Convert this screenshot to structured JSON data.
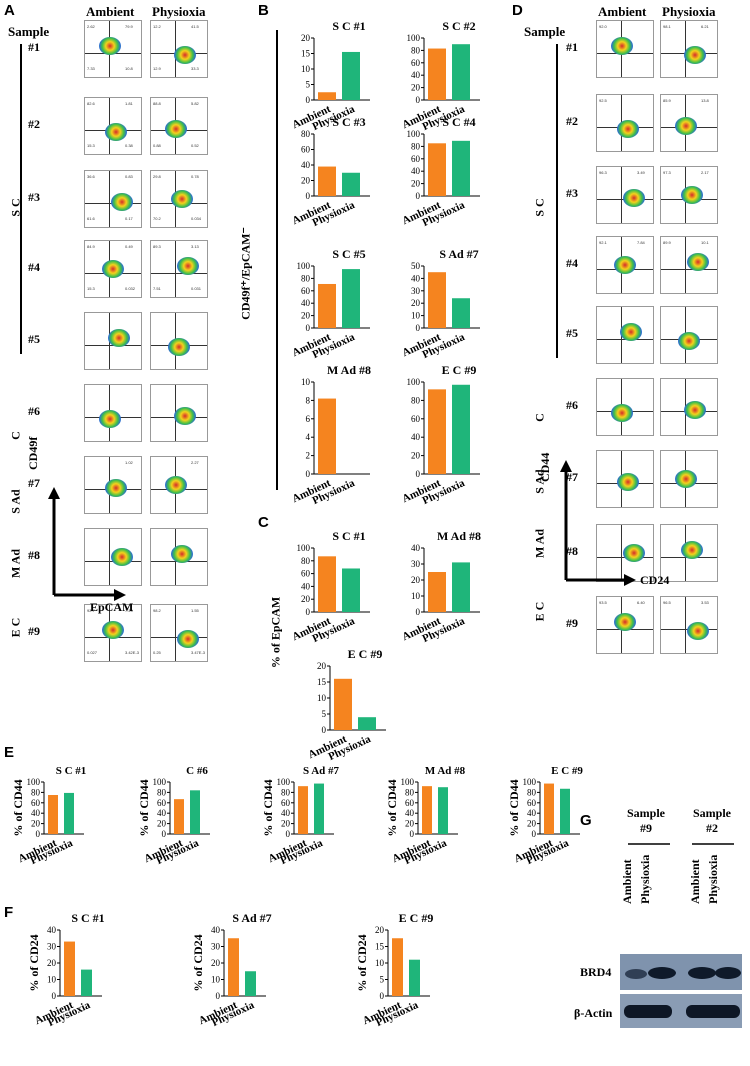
{
  "panelA": {
    "label": "A",
    "col_ambient": "Ambient",
    "col_physioxia": "Physioxia",
    "sample_header": "Sample",
    "samples": [
      "#1",
      "#2",
      "#3",
      "#4",
      "#5",
      "#6",
      "#7",
      "#8",
      "#9"
    ],
    "groups": {
      "sc": "S C",
      "c": "C",
      "sad": "S Ad",
      "mad": "M Ad",
      "ec": "E C"
    },
    "y_axis": "CD49f",
    "x_axis": "EpCAM",
    "quadrant_values": [
      {
        "amb": [
          "2.62",
          "79.9",
          "7.33",
          "10.8"
        ],
        "phy": [
          "12.2",
          "41.5",
          "12.9",
          "33.3"
        ]
      },
      {
        "amb": [
          "82.6",
          "1.81",
          "15.3",
          "0.38"
        ],
        "phy": [
          "88.8",
          "5.82",
          "0.88",
          "0.52"
        ]
      },
      {
        "amb": [
          "36.6",
          "0.83",
          "61.6",
          "0.17"
        ],
        "phy": [
          "29.8",
          "0.78",
          "70.2",
          "0.034"
        ]
      },
      {
        "amb": [
          "84.9",
          "0.49",
          "15.3",
          "0.032"
        ],
        "phy": [
          "89.3",
          "3.13",
          "7.51",
          "0.031"
        ]
      },
      {
        "amb": [
          "",
          "",
          "",
          ""
        ],
        "phy": [
          "",
          "",
          "",
          ""
        ]
      },
      {
        "amb": [
          "",
          "",
          "",
          ""
        ],
        "phy": [
          "",
          "",
          "",
          ""
        ]
      },
      {
        "amb": [
          "",
          "1.02",
          "",
          ""
        ],
        "phy": [
          "",
          "2.27",
          "",
          ""
        ]
      },
      {
        "amb": [
          "",
          "",
          "",
          ""
        ],
        "phy": [
          "",
          "",
          "",
          ""
        ]
      },
      {
        "amb": [
          "92.7",
          "7.29",
          "0.027",
          "3.42E-3"
        ],
        "phy": [
          "98.2",
          "1.55",
          "0.25",
          "3.47E-3"
        ]
      }
    ]
  },
  "panelB": {
    "label": "B",
    "y_axis": "CD49f⁺/EpCAM⁻"
  },
  "panelC": {
    "label": "C",
    "y_axis": "% of EpCAM"
  },
  "panelD": {
    "label": "D",
    "col_ambient": "Ambient",
    "col_physioxia": "Physioxia",
    "sample_header": "Sample",
    "samples": [
      "#1",
      "#2",
      "#3",
      "#4",
      "#5",
      "#6",
      "#7",
      "#8",
      "#9"
    ],
    "groups": {
      "sc": "S C",
      "c": "C",
      "sad": "S Ad",
      "mad": "M Ad",
      "ec": "E C"
    },
    "y_axis": "CD44",
    "x_axis": "CD24",
    "quadrant_values": [
      {
        "amb": [
          "92.0",
          "",
          "",
          ""
        ],
        "phy": [
          "98.1",
          "6.21",
          "",
          ""
        ]
      },
      {
        "amb": [
          "92.5",
          "",
          "",
          ""
        ],
        "phy": [
          "85.9",
          "13.8",
          "",
          ""
        ]
      },
      {
        "amb": [
          "96.3",
          "3.49",
          "",
          ""
        ],
        "phy": [
          "97.3",
          "2.17",
          "",
          ""
        ]
      },
      {
        "amb": [
          "92.1",
          "7.84",
          "",
          ""
        ],
        "phy": [
          "89.9",
          "10.1",
          "",
          ""
        ]
      },
      {
        "amb": [
          "",
          "",
          "",
          ""
        ],
        "phy": [
          "",
          "",
          "",
          ""
        ]
      },
      {
        "amb": [
          "",
          "",
          "",
          ""
        ],
        "phy": [
          "",
          "",
          "",
          ""
        ]
      },
      {
        "amb": [
          "",
          "",
          "",
          ""
        ],
        "phy": [
          "",
          "",
          "",
          ""
        ]
      },
      {
        "amb": [
          "",
          "",
          "",
          ""
        ],
        "phy": [
          "",
          "",
          "",
          ""
        ]
      },
      {
        "amb": [
          "93.5",
          "6.40",
          "",
          ""
        ],
        "phy": [
          "96.5",
          "3.53",
          "",
          ""
        ]
      }
    ]
  },
  "panelE": {
    "label": "E",
    "y_axis": "% of CD44"
  },
  "panelF": {
    "label": "F",
    "y_axis": "% of CD24"
  },
  "panelG": {
    "label": "G",
    "lanes": [
      {
        "sample": "Sample",
        "num": "#9"
      },
      {
        "sample": "Sample",
        "num": "#2"
      }
    ],
    "lane_labels": [
      "Ambient",
      "Physioxia",
      "Ambient",
      "Physioxia"
    ],
    "bands": [
      "BRD4",
      "β-Actin"
    ]
  },
  "colors": {
    "ambient": "#f5841f",
    "physioxia": "#1fb57a"
  },
  "chart_data": [
    {
      "id": "B1",
      "type": "bar",
      "title": "S C #1",
      "categories": [
        "Ambient",
        "Physioxia"
      ],
      "values": [
        2.5,
        15.5
      ],
      "ylim": [
        0,
        20
      ],
      "yticks": [
        0,
        5,
        10,
        15,
        20
      ]
    },
    {
      "id": "B2",
      "type": "bar",
      "title": "S C #2",
      "categories": [
        "Ambient",
        "Physioxia"
      ],
      "values": [
        83,
        90
      ],
      "ylim": [
        0,
        100
      ],
      "yticks": [
        0,
        20,
        40,
        60,
        80,
        100
      ]
    },
    {
      "id": "B3",
      "type": "bar",
      "title": "S C #3",
      "categories": [
        "Ambient",
        "Physioxia"
      ],
      "values": [
        38,
        30
      ],
      "ylim": [
        0,
        80
      ],
      "yticks": [
        0,
        20,
        40,
        60,
        80
      ]
    },
    {
      "id": "B4",
      "type": "bar",
      "title": "S C #4",
      "categories": [
        "Ambient",
        "Physioxia"
      ],
      "values": [
        85,
        89
      ],
      "ylim": [
        0,
        100
      ],
      "yticks": [
        0,
        20,
        40,
        60,
        80,
        100
      ]
    },
    {
      "id": "B5",
      "type": "bar",
      "title": "S C #5",
      "categories": [
        "Ambient",
        "Physioxia"
      ],
      "values": [
        71,
        95
      ],
      "ylim": [
        0,
        100
      ],
      "yticks": [
        0,
        20,
        40,
        60,
        80,
        100
      ]
    },
    {
      "id": "B7",
      "type": "bar",
      "title": "S Ad #7",
      "categories": [
        "Ambient",
        "Physioxia"
      ],
      "values": [
        45,
        24
      ],
      "ylim": [
        0,
        50
      ],
      "yticks": [
        0,
        10,
        20,
        30,
        40,
        50
      ]
    },
    {
      "id": "B8",
      "type": "bar",
      "title": "M Ad #8",
      "categories": [
        "Ambient",
        "Physioxia"
      ],
      "values": [
        8.2,
        0
      ],
      "ylim": [
        0,
        10
      ],
      "yticks": [
        0,
        2,
        4,
        6,
        8,
        10
      ]
    },
    {
      "id": "B9",
      "type": "bar",
      "title": "E C #9",
      "categories": [
        "Ambient",
        "Physioxia"
      ],
      "values": [
        92,
        97
      ],
      "ylim": [
        0,
        100
      ],
      "yticks": [
        0,
        20,
        40,
        60,
        80,
        100
      ]
    },
    {
      "id": "C1",
      "type": "bar",
      "title": "S C #1",
      "categories": [
        "Ambient",
        "Physioxia"
      ],
      "values": [
        87,
        68
      ],
      "ylim": [
        0,
        100
      ],
      "yticks": [
        0,
        20,
        40,
        60,
        80,
        100
      ]
    },
    {
      "id": "C8",
      "type": "bar",
      "title": "M Ad #8",
      "categories": [
        "Ambient",
        "Physioxia"
      ],
      "values": [
        25,
        31
      ],
      "ylim": [
        0,
        40
      ],
      "yticks": [
        0,
        10,
        20,
        30,
        40
      ]
    },
    {
      "id": "C9",
      "type": "bar",
      "title": "E C #9",
      "categories": [
        "Ambient",
        "Physioxia"
      ],
      "values": [
        16,
        4
      ],
      "ylim": [
        0,
        20
      ],
      "yticks": [
        0,
        5,
        10,
        15,
        20
      ]
    },
    {
      "id": "E1",
      "type": "bar",
      "title": "S C #1",
      "categories": [
        "Ambient",
        "Physioxia"
      ],
      "values": [
        75,
        79
      ],
      "ylim": [
        0,
        100
      ],
      "yticks": [
        0,
        20,
        40,
        60,
        80,
        100
      ]
    },
    {
      "id": "E6",
      "type": "bar",
      "title": "C #6",
      "categories": [
        "Ambient",
        "Physioxia"
      ],
      "values": [
        67,
        84
      ],
      "ylim": [
        0,
        100
      ],
      "yticks": [
        0,
        20,
        40,
        60,
        80,
        100
      ]
    },
    {
      "id": "E7",
      "type": "bar",
      "title": "S Ad #7",
      "categories": [
        "Ambient",
        "Physioxia"
      ],
      "values": [
        92,
        97
      ],
      "ylim": [
        0,
        100
      ],
      "yticks": [
        0,
        20,
        40,
        60,
        80,
        100
      ]
    },
    {
      "id": "E8",
      "type": "bar",
      "title": "M Ad #8",
      "categories": [
        "Ambient",
        "Physioxia"
      ],
      "values": [
        92,
        90
      ],
      "ylim": [
        0,
        100
      ],
      "yticks": [
        0,
        20,
        40,
        60,
        80,
        100
      ]
    },
    {
      "id": "E9",
      "type": "bar",
      "title": "E C #9",
      "categories": [
        "Ambient",
        "Physioxia"
      ],
      "values": [
        97,
        87
      ],
      "ylim": [
        0,
        100
      ],
      "yticks": [
        0,
        20,
        40,
        60,
        80,
        100
      ]
    },
    {
      "id": "F1",
      "type": "bar",
      "title": "S C #1",
      "categories": [
        "Ambient",
        "Physioxia"
      ],
      "values": [
        33,
        16
      ],
      "ylim": [
        0,
        40
      ],
      "yticks": [
        0,
        10,
        20,
        30,
        40
      ]
    },
    {
      "id": "F7",
      "type": "bar",
      "title": "S Ad #7",
      "categories": [
        "Ambient",
        "Physioxia"
      ],
      "values": [
        35,
        15
      ],
      "ylim": [
        0,
        40
      ],
      "yticks": [
        0,
        10,
        20,
        30,
        40
      ]
    },
    {
      "id": "F9",
      "type": "bar",
      "title": "E C #9",
      "categories": [
        "Ambient",
        "Physioxia"
      ],
      "values": [
        17.5,
        11
      ],
      "ylim": [
        0,
        20
      ],
      "yticks": [
        0,
        5,
        10,
        15,
        20
      ]
    }
  ]
}
